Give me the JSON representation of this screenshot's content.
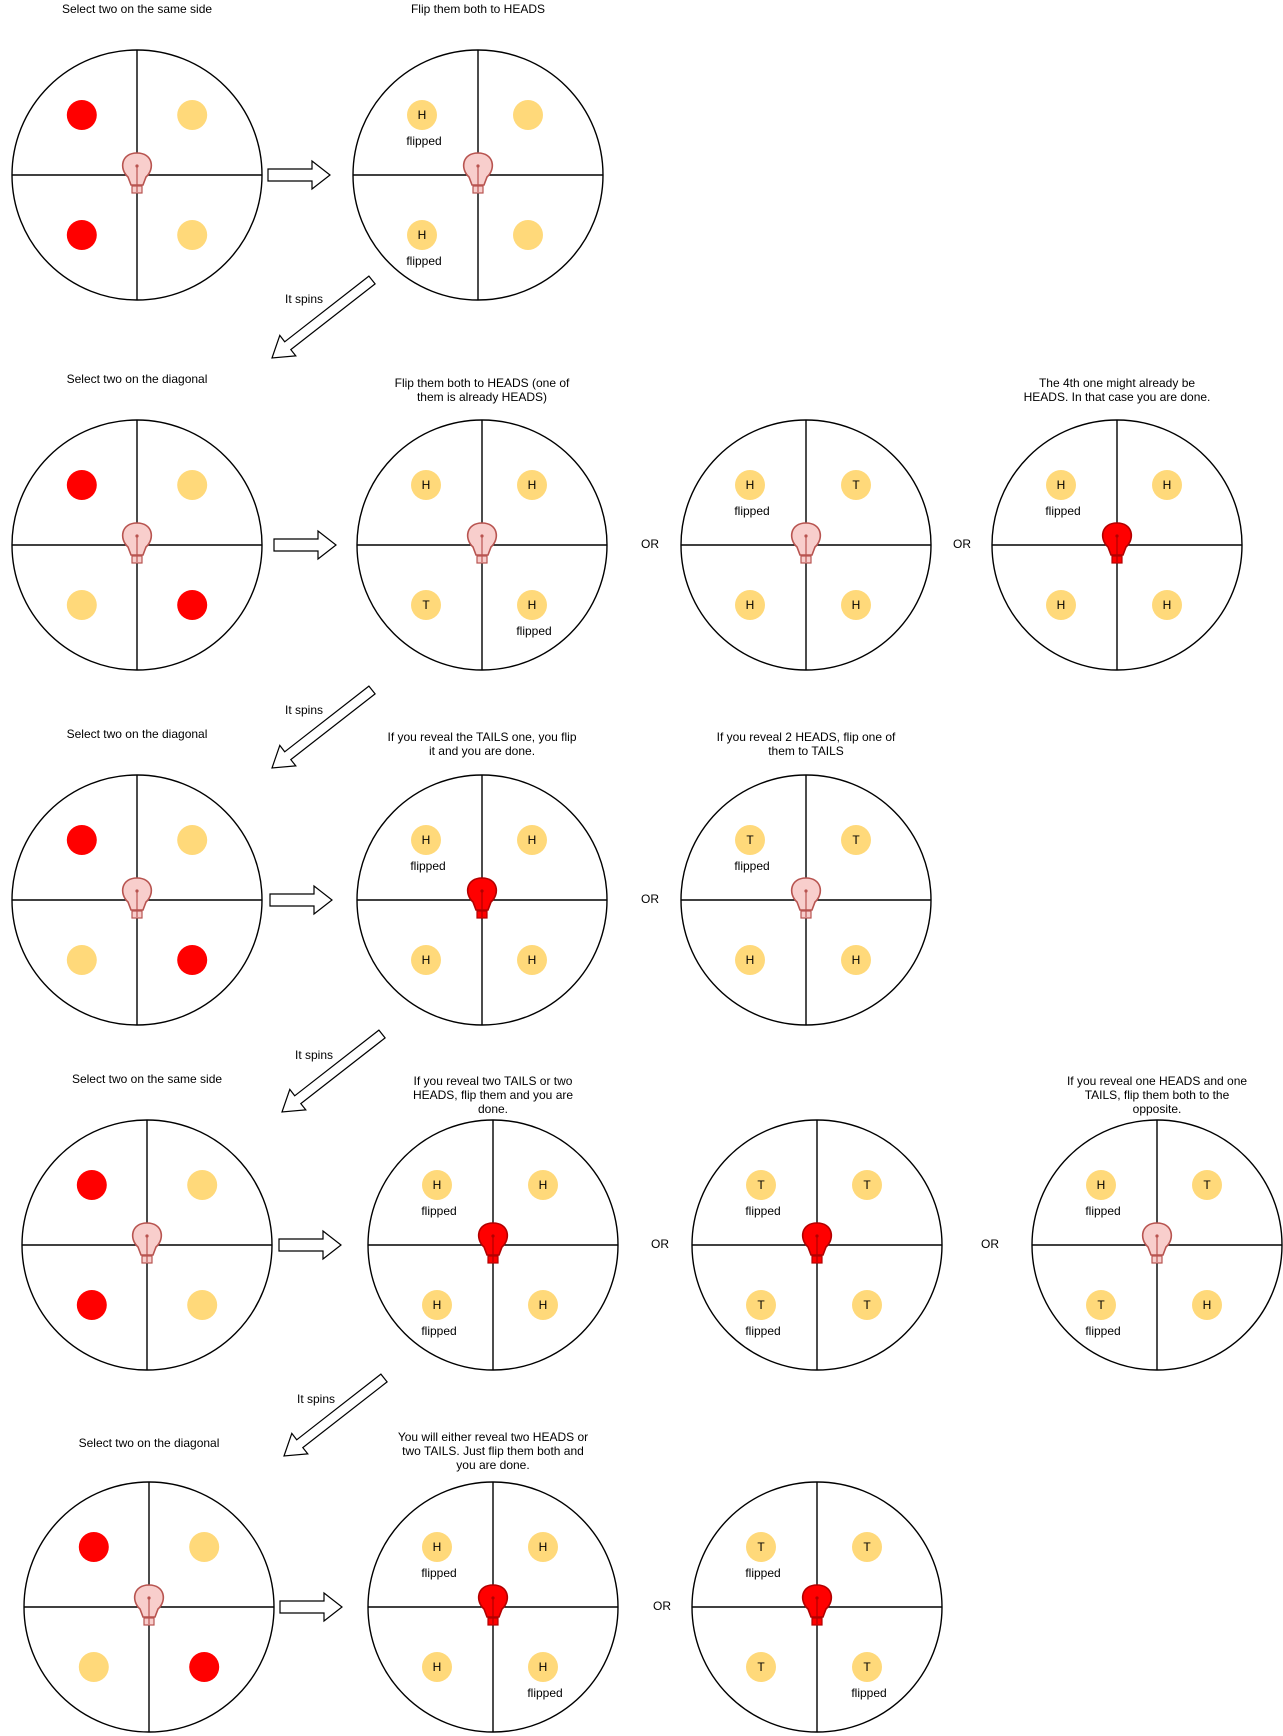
{
  "colors": {
    "selected": "#ff0000",
    "coin": "#ffd97a",
    "bulb_off_fill": "#f8cecc",
    "bulb_off_stroke": "#b85450",
    "bulb_on_fill": "#ff0000",
    "bulb_on_stroke": "#b20000",
    "line": "#000000"
  },
  "icons": {
    "bulb": "lightbulb-icon",
    "arrow": "arrow-icon"
  },
  "texts": {
    "spins": "It spins",
    "or": "OR",
    "flipped": "flipped",
    "heads": "H",
    "tails": "T"
  },
  "rows": [
    {
      "left_label": [
        "Select two on the same side"
      ],
      "panels": [
        {
          "label": [
            "Flip them both to HEADS"
          ],
          "bulb": "off",
          "coins": [
            {
              "face": "H",
              "flipped": true
            },
            {
              "face": "",
              "flipped": false
            },
            {
              "face": "H",
              "flipped": true
            },
            {
              "face": "",
              "flipped": false
            }
          ]
        }
      ]
    },
    {
      "left_label": [
        "Select two on the diagonal"
      ],
      "panels": [
        {
          "label": [
            "Flip them both to HEADS (one of",
            "them is already HEADS)"
          ],
          "bulb": "off",
          "coins": [
            {
              "face": "H"
            },
            {
              "face": "H"
            },
            {
              "face": "T"
            },
            {
              "face": "H",
              "flipped": true
            }
          ]
        },
        {
          "label": [],
          "bulb": "off",
          "coins": [
            {
              "face": "H",
              "flipped": true
            },
            {
              "face": "T"
            },
            {
              "face": "H"
            },
            {
              "face": "H"
            }
          ]
        },
        {
          "label": [
            "The 4th one might already be",
            "HEADS. In that case you are done."
          ],
          "bulb": "on",
          "coins": [
            {
              "face": "H",
              "flipped": true
            },
            {
              "face": "H"
            },
            {
              "face": "H"
            },
            {
              "face": "H"
            }
          ]
        }
      ]
    },
    {
      "left_label": [
        "Select two on the diagonal"
      ],
      "panels": [
        {
          "label": [
            "If you reveal the TAILS one, you flip",
            "it and you are done."
          ],
          "bulb": "on",
          "coins": [
            {
              "face": "H",
              "flipped": true
            },
            {
              "face": "H"
            },
            {
              "face": "H"
            },
            {
              "face": "H"
            }
          ]
        },
        {
          "label": [
            "If you reveal 2 HEADS, flip one of",
            "them to TAILS"
          ],
          "bulb": "off",
          "coins": [
            {
              "face": "T",
              "flipped": true
            },
            {
              "face": "T"
            },
            {
              "face": "H"
            },
            {
              "face": "H"
            }
          ]
        }
      ]
    },
    {
      "left_label": [
        "Select two on the same side"
      ],
      "panels": [
        {
          "label": [
            "If you reveal two TAILS or two",
            "HEADS, flip them and you are",
            "done."
          ],
          "bulb": "on",
          "coins": [
            {
              "face": "H",
              "flipped": true
            },
            {
              "face": "H"
            },
            {
              "face": "H",
              "flipped": true
            },
            {
              "face": "H"
            }
          ]
        },
        {
          "label": [],
          "bulb": "on",
          "coins": [
            {
              "face": "T",
              "flipped": true
            },
            {
              "face": "T"
            },
            {
              "face": "T",
              "flipped": true
            },
            {
              "face": "T"
            }
          ]
        },
        {
          "label": [
            "If you reveal one HEADS and one",
            "TAILS, flip them both to the",
            "opposite."
          ],
          "bulb": "off",
          "coins": [
            {
              "face": "H",
              "flipped": true
            },
            {
              "face": "T"
            },
            {
              "face": "T",
              "flipped": true
            },
            {
              "face": "H"
            }
          ]
        }
      ]
    },
    {
      "left_label": [
        "Select two on the diagonal"
      ],
      "panels": [
        {
          "label": [
            "You will either reveal two HEADS or",
            "two TAILS. Just flip them both and",
            "you are done."
          ],
          "bulb": "on",
          "coins": [
            {
              "face": "H",
              "flipped": true
            },
            {
              "face": "H"
            },
            {
              "face": "H"
            },
            {
              "face": "H",
              "flipped": true
            }
          ]
        },
        {
          "label": [],
          "bulb": "on",
          "coins": [
            {
              "face": "T",
              "flipped": true
            },
            {
              "face": "T"
            },
            {
              "face": "T"
            },
            {
              "face": "T",
              "flipped": true
            }
          ]
        }
      ]
    }
  ],
  "left_selections": [
    [
      "sel",
      "coin",
      "sel",
      "coin"
    ],
    [
      "sel",
      "coin",
      "coin",
      "sel"
    ],
    [
      "sel",
      "coin",
      "coin",
      "sel"
    ],
    [
      "sel",
      "coin",
      "sel",
      "coin"
    ],
    [
      "sel",
      "coin",
      "coin",
      "sel"
    ]
  ]
}
